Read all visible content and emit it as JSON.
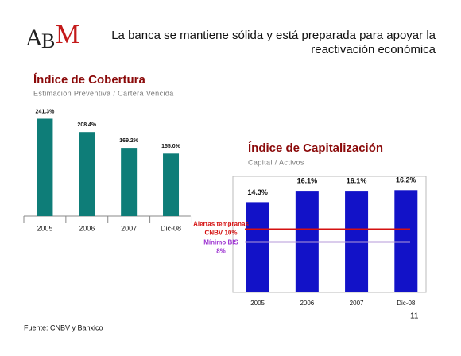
{
  "header": {
    "logo": [
      "A",
      "B",
      "M"
    ],
    "title": [
      "La banca se mantiene sólida y está preparada para apoyar la",
      "reactivación económica"
    ]
  },
  "chart_data": [
    {
      "type": "bar",
      "title": "Índice de Cobertura",
      "subtitle": "Estimación Preventiva / Cartera Vencida",
      "categories": [
        "2005",
        "2006",
        "2007",
        "Dic-08"
      ],
      "values": [
        241.3,
        208.4,
        169.2,
        155.0
      ],
      "value_labels": [
        "241.3%",
        "208.4%",
        "169.2%",
        "155.0%"
      ],
      "color": "#0e7d78",
      "ylim": [
        0,
        260
      ]
    },
    {
      "type": "bar",
      "title": "Índice de Capitalización",
      "subtitle": "Capital / Activos",
      "categories": [
        "2005",
        "2006",
        "2007",
        "Dic-08"
      ],
      "values": [
        14.3,
        16.1,
        16.1,
        16.2
      ],
      "value_labels": [
        "14.3%",
        "16.1%",
        "16.1%",
        "16.2%"
      ],
      "color": "#1212c8",
      "ylim": [
        0,
        18
      ],
      "reference_lines": [
        {
          "value": 10,
          "label": [
            "Alertas tempranas",
            "CNBV 10%"
          ],
          "color": "#d41010"
        },
        {
          "value": 8,
          "label": [
            "Mínimo BIS",
            "8%"
          ],
          "color": "#b49ad8"
        }
      ]
    }
  ],
  "footer": {
    "source": "Fuente: CNBV y Banxico",
    "page": "11"
  }
}
